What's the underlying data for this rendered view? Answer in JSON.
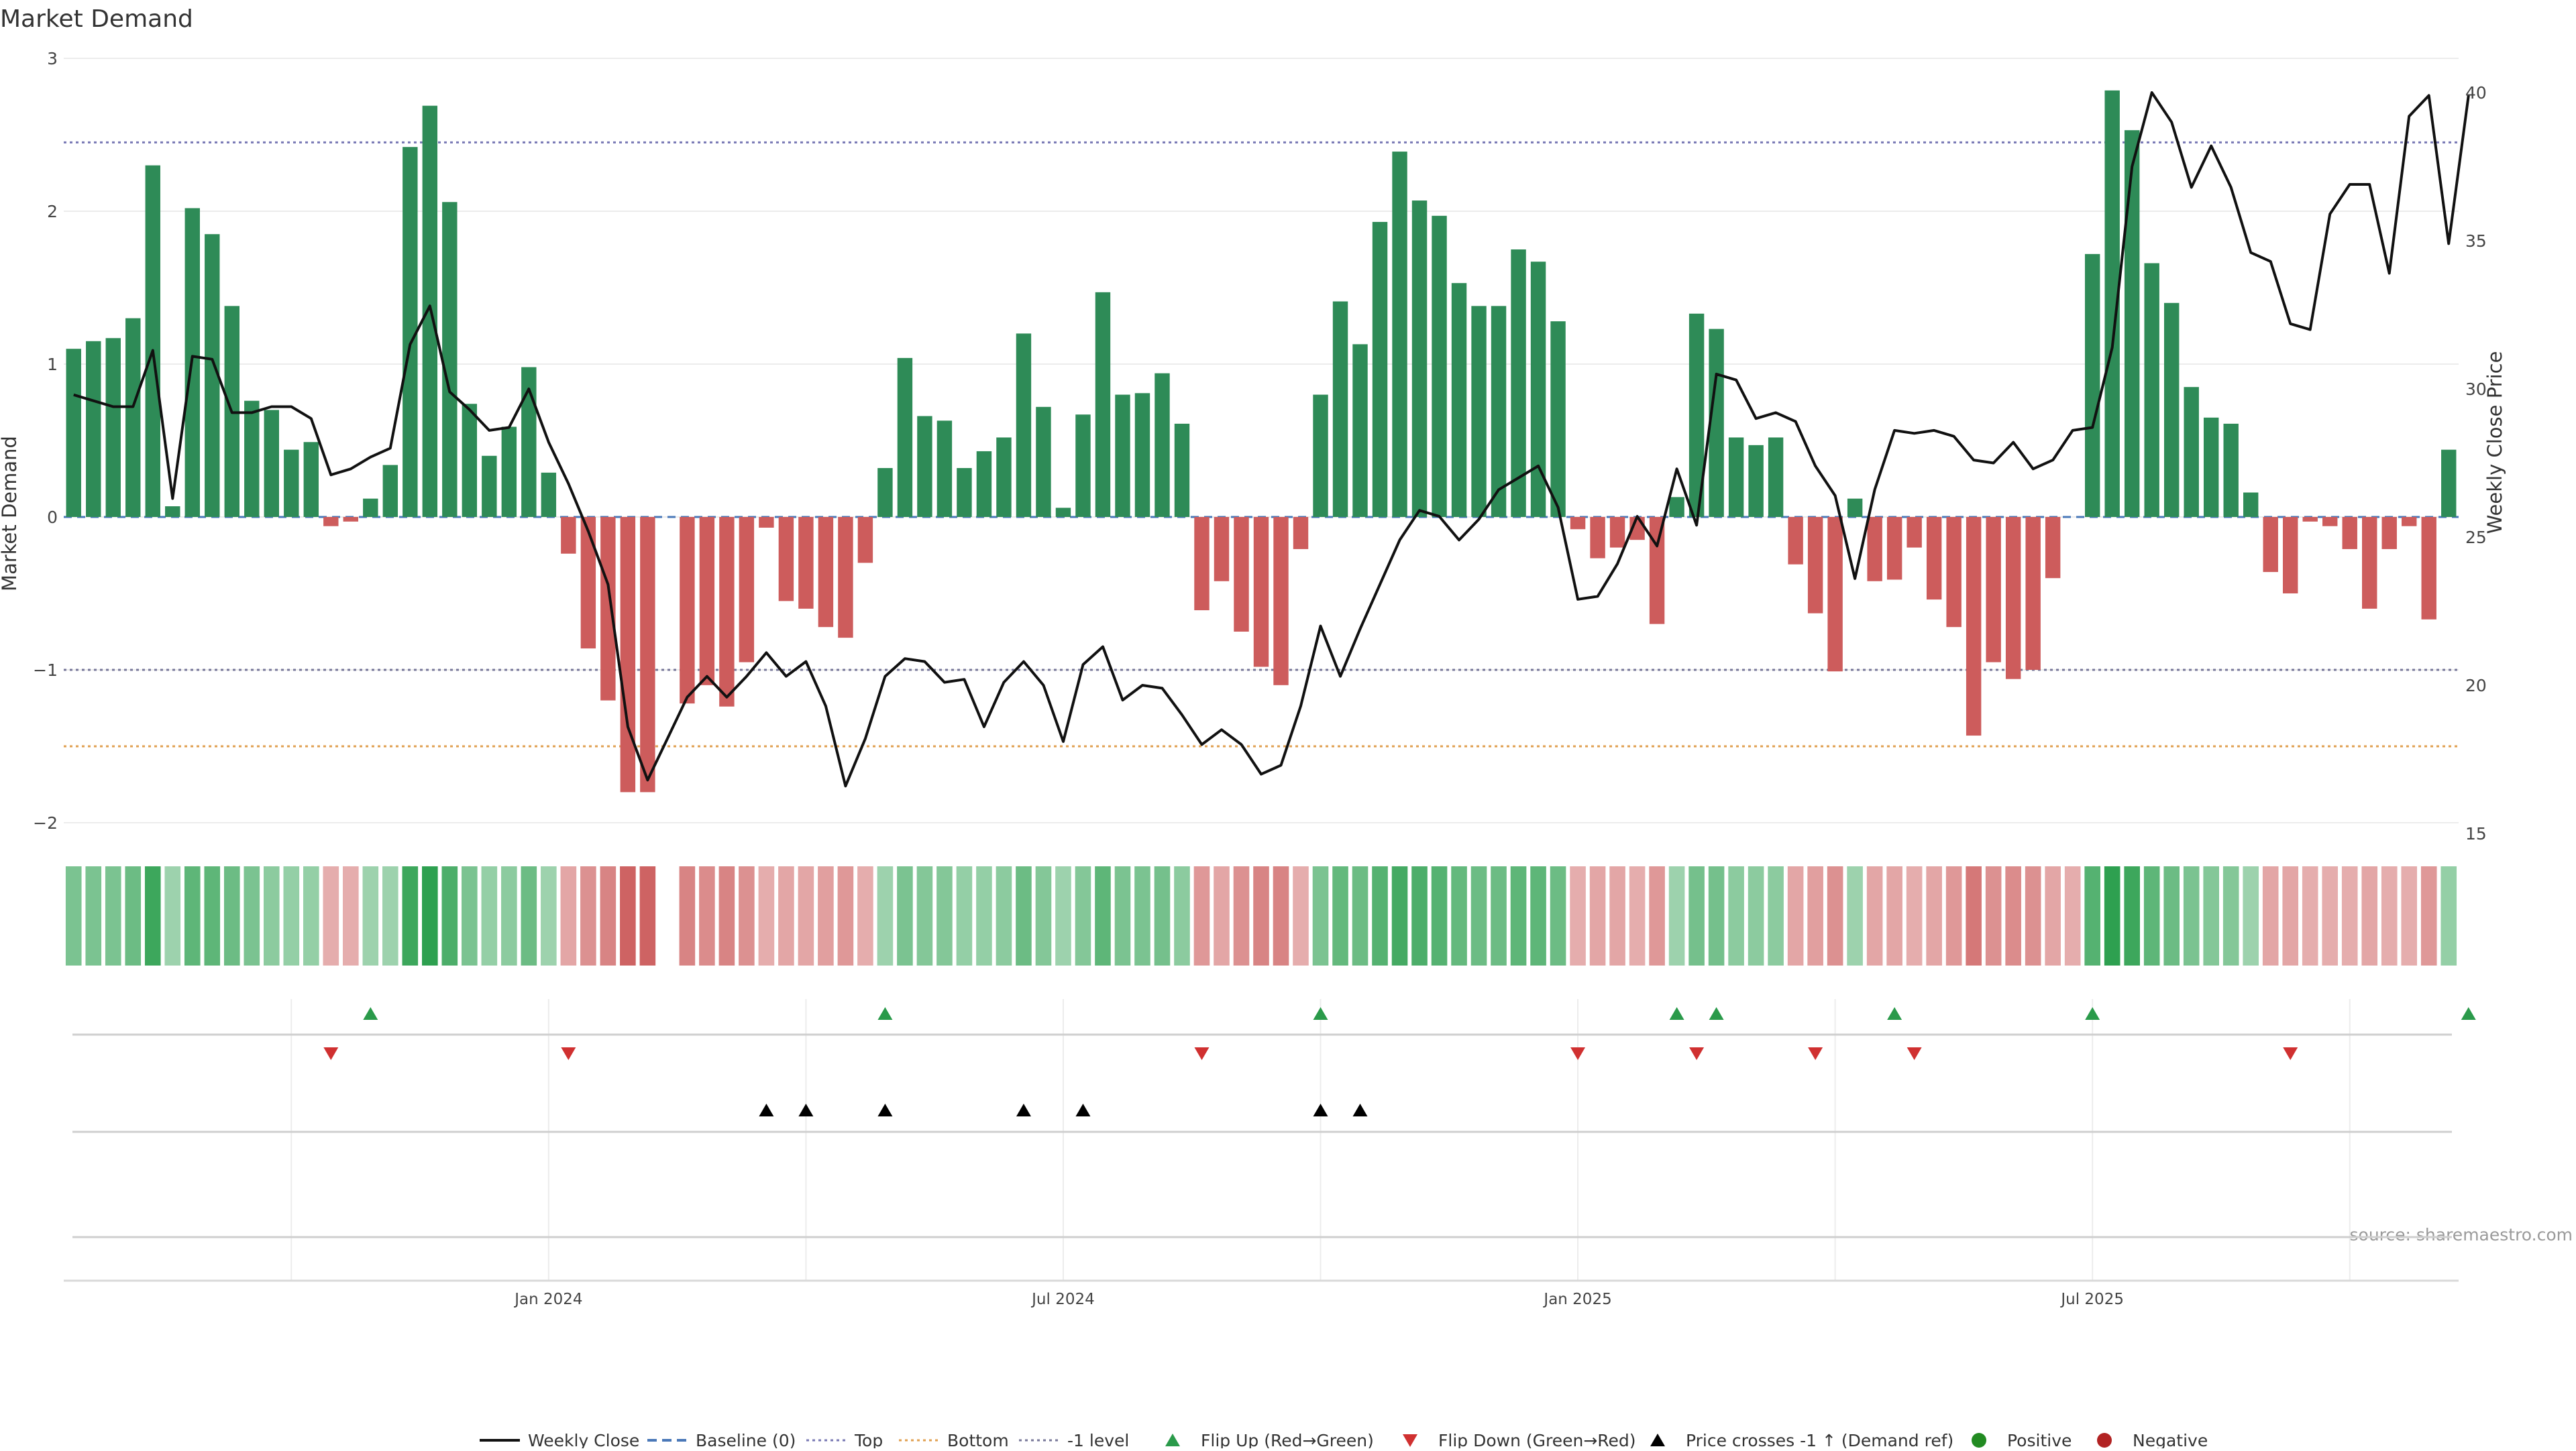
{
  "chart_data": {
    "type": "bar",
    "title": "Market Demand",
    "ylabel": "Market Demand",
    "y2label": "Weekly Close Price",
    "ylim": [
      -2,
      3
    ],
    "y2lim": [
      15,
      40.5
    ],
    "yticks": [
      3,
      2,
      1,
      0,
      -1,
      -2
    ],
    "ytick_labels": [
      "3",
      "2",
      "1",
      "0",
      "−1",
      "−2"
    ],
    "y2ticks": [
      40,
      35,
      30,
      25,
      20,
      15
    ],
    "y2tick_labels": [
      "40",
      "35",
      "30",
      "25",
      "20",
      "15"
    ],
    "x_label_weeks": [
      {
        "week": 24.5,
        "label": "Jan 2024"
      },
      {
        "week": 50.5,
        "label": "Jul 2024"
      },
      {
        "week": 76.5,
        "label": "Jan 2025"
      },
      {
        "week": 102.5,
        "label": "Jul 2025"
      }
    ],
    "gridline_weeks": [
      11.5,
      24.5,
      37.5,
      50.5,
      63.5,
      76.5,
      89.5,
      102.5,
      115.5
    ],
    "reference_lines": {
      "baseline": 0,
      "top": 2.45,
      "bottom": -1.5,
      "minus_one": -1
    },
    "demand": [
      1.1,
      1.15,
      1.17,
      1.3,
      2.3,
      0.07,
      2.02,
      1.85,
      1.38,
      0.76,
      0.7,
      0.44,
      0.49,
      -0.06,
      -0.03,
      0.12,
      0.34,
      2.42,
      2.69,
      2.06,
      0.74,
      0.4,
      0.59,
      0.98,
      0.29,
      -0.24,
      -0.86,
      -1.2,
      -1.8,
      -1.8,
      0,
      -1.22,
      -1.1,
      -1.24,
      -0.95,
      -0.07,
      -0.55,
      -0.6,
      -0.72,
      -0.79,
      -0.3,
      0.32,
      1.04,
      0.66,
      0.63,
      0.32,
      0.43,
      0.52,
      1.2,
      0.72,
      0.06,
      0.67,
      1.47,
      0.8,
      0.81,
      0.94,
      0.61,
      -0.61,
      -0.42,
      -0.75,
      -0.98,
      -1.1,
      -0.21,
      0.8,
      1.41,
      1.13,
      1.93,
      2.39,
      2.07,
      1.97,
      1.53,
      1.38,
      1.38,
      1.75,
      1.67,
      1.28,
      -0.08,
      -0.27,
      -0.2,
      -0.15,
      -0.7,
      0.13,
      1.33,
      1.23,
      0.52,
      0.47,
      0.52,
      -0.31,
      -0.63,
      -1.01,
      0.12,
      -0.42,
      -0.41,
      -0.2,
      -0.54,
      -0.72,
      -1.43,
      -0.95,
      -1.06,
      -1.0,
      -0.4,
      0,
      1.72,
      2.79,
      2.53,
      1.66,
      1.4,
      0.85,
      0.65,
      0.61,
      0.16,
      -0.36,
      -0.5,
      -0.03,
      -0.06,
      -0.21,
      -0.6,
      -0.21,
      -0.06,
      -0.67,
      0.44
    ],
    "weekly_close": [
      29.8,
      29.6,
      29.4,
      29.4,
      31.3,
      26.3,
      31.1,
      31.0,
      29.2,
      29.2,
      29.4,
      29.4,
      29.0,
      27.1,
      27.3,
      27.7,
      28.0,
      31.5,
      32.8,
      29.9,
      29.3,
      28.6,
      28.7,
      30.0,
      28.2,
      26.8,
      25.2,
      23.4,
      18.6,
      16.8,
      18.2,
      19.6,
      20.3,
      19.6,
      20.3,
      21.1,
      20.3,
      20.8,
      19.3,
      16.6,
      18.2,
      20.3,
      20.9,
      20.8,
      20.1,
      20.2,
      18.6,
      20.1,
      20.8,
      20.0,
      18.1,
      20.7,
      21.3,
      19.5,
      20.0,
      19.9,
      19.0,
      18.0,
      18.5,
      18.0,
      17.0,
      17.3,
      19.3,
      22.0,
      20.3,
      21.9,
      23.4,
      24.9,
      25.9,
      25.7,
      24.9,
      25.6,
      26.6,
      27.0,
      27.4,
      26.0,
      22.9,
      23.0,
      24.1,
      25.7,
      24.7,
      27.3,
      25.4,
      30.5,
      30.3,
      29.0,
      29.2,
      28.9,
      27.4,
      26.4,
      23.6,
      26.6,
      28.6,
      28.5,
      28.6,
      28.4,
      27.6,
      27.5,
      28.2,
      27.3,
      27.6,
      28.6,
      28.7,
      31.4,
      37.5,
      40.0,
      39.0,
      36.8,
      38.2,
      36.8,
      34.6,
      34.3,
      32.2,
      32.0,
      35.9,
      36.9,
      36.9,
      33.9,
      39.2,
      39.9,
      34.9,
      39.9
    ],
    "shade_levels": [
      0.5,
      0.5,
      0.5,
      0.6,
      0.9,
      0.3,
      0.7,
      0.7,
      0.6,
      0.5,
      0.4,
      0.35,
      0.35,
      0.3,
      0.3,
      0.3,
      0.3,
      0.9,
      1.0,
      0.8,
      0.5,
      0.35,
      0.4,
      0.6,
      0.3,
      0.35,
      0.5,
      0.6,
      0.85,
      0.85,
      null,
      0.6,
      0.55,
      0.6,
      0.5,
      0.3,
      0.35,
      0.35,
      0.4,
      0.45,
      0.3,
      0.3,
      0.5,
      0.45,
      0.45,
      0.35,
      0.35,
      0.4,
      0.6,
      0.45,
      0.3,
      0.45,
      0.7,
      0.5,
      0.5,
      0.55,
      0.4,
      0.45,
      0.35,
      0.5,
      0.6,
      0.6,
      0.3,
      0.5,
      0.65,
      0.6,
      0.75,
      0.85,
      0.8,
      0.75,
      0.65,
      0.6,
      0.6,
      0.7,
      0.7,
      0.6,
      0.3,
      0.35,
      0.35,
      0.3,
      0.45,
      0.3,
      0.55,
      0.55,
      0.4,
      0.4,
      0.4,
      0.35,
      0.4,
      0.5,
      0.3,
      0.35,
      0.35,
      0.3,
      0.35,
      0.45,
      0.7,
      0.5,
      0.55,
      0.5,
      0.35,
      0.3,
      0.75,
      1.0,
      0.9,
      0.7,
      0.6,
      0.5,
      0.45,
      0.45,
      0.3,
      0.35,
      0.35,
      0.3,
      0.3,
      0.3,
      0.35,
      0.3,
      0.3,
      0.45,
      0.35
    ],
    "flip_up_weeks": [
      15,
      41,
      63,
      81,
      83,
      92,
      102,
      121
    ],
    "flip_down_weeks": [
      13,
      25,
      57,
      76,
      82,
      88,
      93,
      112
    ],
    "price_cross_weeks": [
      35,
      37,
      41,
      48,
      51,
      63,
      65
    ],
    "legend": {
      "weekly_close": "Weekly Close",
      "baseline": "Baseline (0)",
      "top": "Top",
      "bottom": "Bottom",
      "minus_one": "-1 level",
      "flip_up": "Flip Up (Red→Green)",
      "flip_down": "Flip Down (Green→Red)",
      "price_cross": "Price crosses -1 ↑ (Demand ref)",
      "positive": "Positive",
      "negative": "Negative"
    },
    "source": "source: sharemaestro.com"
  },
  "colors": {
    "positive_bar": "#2e8b57",
    "negative_bar": "#cd5c5c",
    "price_line": "#111111",
    "baseline": "#4a78b8",
    "top": "#7878b4",
    "bottom": "#e0a050",
    "minus_one": "#777799",
    "flip_up": "#2a9a4a",
    "flip_down": "#d03030",
    "positive_dot": "#228b22",
    "negative_dot": "#b22222"
  }
}
